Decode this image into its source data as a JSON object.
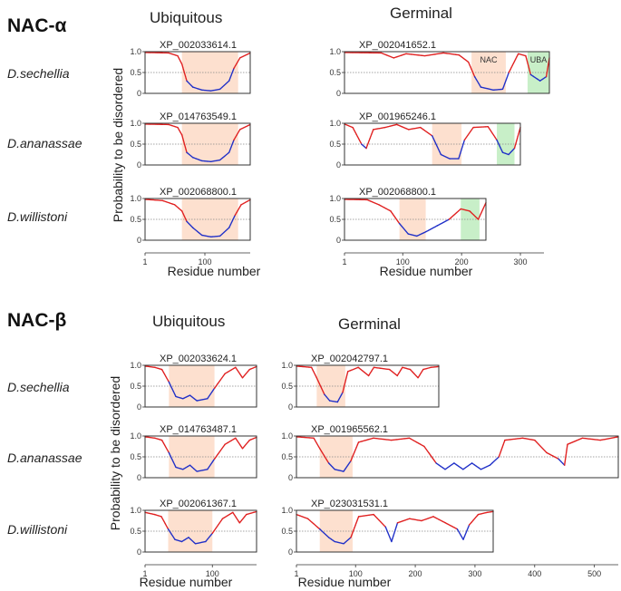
{
  "sections": [
    {
      "id": "alpha",
      "title": "NAC-α",
      "groups": [
        "Ubiquitous",
        "Germinal"
      ]
    },
    {
      "id": "beta",
      "title": "NAC-β",
      "groups": [
        "Ubiquitous",
        "Germinal"
      ]
    }
  ],
  "species": [
    "D.sechellia",
    "D.ananassae",
    "D.willistoni"
  ],
  "ylabel": "Probability to be disordered",
  "xlabel": "Residue number",
  "domain_labels": {
    "nac": "NAC",
    "uba": "UBA"
  },
  "colors": {
    "disordered": "#e02020",
    "ordered": "#2030c8",
    "nac_domain": "#fde0cf",
    "uba_domain": "#c8efc8"
  },
  "chart_data": [
    {
      "type": "line",
      "title": "XP_002033614.1",
      "section": "NAC-α",
      "group": "Ubiquitous",
      "species": "D.sechellia",
      "length": 175,
      "ylim": [
        0,
        1
      ],
      "yticks": [
        0,
        0.5,
        1.0
      ],
      "xticks": [],
      "nac_domain": [
        62,
        155
      ],
      "profile": [
        [
          1,
          0.98
        ],
        [
          40,
          0.97
        ],
        [
          55,
          0.9
        ],
        [
          62,
          0.7
        ],
        [
          70,
          0.3
        ],
        [
          80,
          0.15
        ],
        [
          95,
          0.08
        ],
        [
          110,
          0.06
        ],
        [
          125,
          0.1
        ],
        [
          140,
          0.3
        ],
        [
          148,
          0.6
        ],
        [
          158,
          0.85
        ],
        [
          175,
          0.97
        ]
      ]
    },
    {
      "type": "line",
      "title": "XP_014763549.1",
      "section": "NAC-α",
      "group": "Ubiquitous",
      "species": "D.ananassae",
      "length": 175,
      "ylim": [
        0,
        1
      ],
      "yticks": [
        0,
        0.5,
        1.0
      ],
      "xticks": [],
      "nac_domain": [
        62,
        155
      ],
      "profile": [
        [
          1,
          0.98
        ],
        [
          40,
          0.97
        ],
        [
          55,
          0.9
        ],
        [
          62,
          0.72
        ],
        [
          70,
          0.3
        ],
        [
          80,
          0.18
        ],
        [
          95,
          0.1
        ],
        [
          110,
          0.08
        ],
        [
          125,
          0.12
        ],
        [
          140,
          0.3
        ],
        [
          148,
          0.6
        ],
        [
          158,
          0.85
        ],
        [
          175,
          0.97
        ]
      ]
    },
    {
      "type": "line",
      "title": "XP_002068800.1",
      "section": "NAC-α",
      "group": "Ubiquitous",
      "species": "D.willistoni",
      "length": 175,
      "ylim": [
        0,
        1
      ],
      "yticks": [
        0,
        0.5,
        1.0
      ],
      "xticks": [
        1,
        100
      ],
      "nac_domain": [
        62,
        155
      ],
      "profile": [
        [
          1,
          0.98
        ],
        [
          30,
          0.95
        ],
        [
          50,
          0.85
        ],
        [
          62,
          0.7
        ],
        [
          70,
          0.45
        ],
        [
          80,
          0.3
        ],
        [
          95,
          0.12
        ],
        [
          110,
          0.08
        ],
        [
          125,
          0.1
        ],
        [
          140,
          0.3
        ],
        [
          150,
          0.6
        ],
        [
          160,
          0.85
        ],
        [
          175,
          0.97
        ]
      ]
    },
    {
      "type": "line",
      "title": "XP_002041652.1",
      "section": "NAC-α",
      "group": "Germinal",
      "species": "D.sechellia",
      "length": 330,
      "ylim": [
        0,
        1
      ],
      "yticks": [
        0,
        0.5,
        1.0
      ],
      "xticks": [],
      "nac_domain": [
        205,
        260
      ],
      "uba_domain": [
        295,
        330
      ],
      "profile": [
        [
          1,
          0.98
        ],
        [
          60,
          0.97
        ],
        [
          80,
          0.85
        ],
        [
          100,
          0.95
        ],
        [
          130,
          0.9
        ],
        [
          160,
          0.97
        ],
        [
          185,
          0.92
        ],
        [
          200,
          0.75
        ],
        [
          210,
          0.4
        ],
        [
          220,
          0.15
        ],
        [
          240,
          0.08
        ],
        [
          255,
          0.1
        ],
        [
          265,
          0.5
        ],
        [
          280,
          0.95
        ],
        [
          292,
          0.9
        ],
        [
          300,
          0.45
        ],
        [
          315,
          0.3
        ],
        [
          325,
          0.4
        ],
        [
          330,
          0.85
        ]
      ]
    },
    {
      "type": "line",
      "title": "XP_001965246.1",
      "section": "NAC-α",
      "group": "Germinal",
      "species": "D.ananassae",
      "length": 300,
      "ylim": [
        0,
        1
      ],
      "yticks": [
        0,
        0.5,
        1.0
      ],
      "xticks": [],
      "nac_domain": [
        150,
        200
      ],
      "uba_domain": [
        260,
        290
      ],
      "profile": [
        [
          1,
          0.98
        ],
        [
          15,
          0.9
        ],
        [
          30,
          0.5
        ],
        [
          38,
          0.4
        ],
        [
          50,
          0.85
        ],
        [
          70,
          0.9
        ],
        [
          90,
          0.97
        ],
        [
          110,
          0.85
        ],
        [
          130,
          0.9
        ],
        [
          150,
          0.7
        ],
        [
          165,
          0.25
        ],
        [
          180,
          0.15
        ],
        [
          195,
          0.15
        ],
        [
          205,
          0.6
        ],
        [
          220,
          0.9
        ],
        [
          245,
          0.92
        ],
        [
          260,
          0.6
        ],
        [
          270,
          0.3
        ],
        [
          280,
          0.25
        ],
        [
          290,
          0.4
        ],
        [
          300,
          0.9
        ]
      ]
    },
    {
      "type": "line",
      "title": "XP_002068800.1",
      "section": "NAC-α",
      "group": "Germinal",
      "species": "D.willistoni",
      "length": 243,
      "ylim": [
        0,
        1
      ],
      "yticks": [
        0,
        0.5,
        1.0
      ],
      "xticks": [
        1,
        100,
        200,
        300
      ],
      "xaxis_max": 340,
      "nac_domain": [
        95,
        140
      ],
      "uba_domain": [
        200,
        232
      ],
      "profile": [
        [
          1,
          0.98
        ],
        [
          40,
          0.97
        ],
        [
          60,
          0.85
        ],
        [
          80,
          0.7
        ],
        [
          95,
          0.4
        ],
        [
          110,
          0.15
        ],
        [
          125,
          0.1
        ],
        [
          140,
          0.2
        ],
        [
          160,
          0.35
        ],
        [
          180,
          0.5
        ],
        [
          200,
          0.75
        ],
        [
          215,
          0.7
        ],
        [
          230,
          0.5
        ],
        [
          243,
          0.9
        ]
      ]
    },
    {
      "type": "line",
      "title": "XP_002033624.1",
      "section": "NAC-β",
      "group": "Ubiquitous",
      "species": "D.sechellia",
      "length": 160,
      "ylim": [
        0,
        1
      ],
      "yticks": [
        0,
        0.5,
        1.0
      ],
      "xticks": [],
      "nac_domain": [
        35,
        100
      ],
      "profile": [
        [
          1,
          0.98
        ],
        [
          15,
          0.95
        ],
        [
          25,
          0.9
        ],
        [
          35,
          0.6
        ],
        [
          45,
          0.25
        ],
        [
          55,
          0.2
        ],
        [
          65,
          0.28
        ],
        [
          75,
          0.15
        ],
        [
          90,
          0.2
        ],
        [
          100,
          0.45
        ],
        [
          115,
          0.8
        ],
        [
          130,
          0.95
        ],
        [
          140,
          0.7
        ],
        [
          150,
          0.9
        ],
        [
          160,
          0.97
        ]
      ]
    },
    {
      "type": "line",
      "title": "XP_014763487.1",
      "section": "NAC-β",
      "group": "Ubiquitous",
      "species": "D.ananassae",
      "length": 160,
      "ylim": [
        0,
        1
      ],
      "yticks": [
        0,
        0.5,
        1.0
      ],
      "xticks": [],
      "nac_domain": [
        35,
        100
      ],
      "profile": [
        [
          1,
          0.98
        ],
        [
          15,
          0.95
        ],
        [
          25,
          0.9
        ],
        [
          35,
          0.6
        ],
        [
          45,
          0.25
        ],
        [
          55,
          0.2
        ],
        [
          65,
          0.3
        ],
        [
          75,
          0.15
        ],
        [
          90,
          0.2
        ],
        [
          100,
          0.45
        ],
        [
          115,
          0.8
        ],
        [
          130,
          0.95
        ],
        [
          140,
          0.7
        ],
        [
          150,
          0.9
        ],
        [
          160,
          0.97
        ]
      ]
    },
    {
      "type": "line",
      "title": "XP_002061367.1",
      "section": "NAC-β",
      "group": "Ubiquitous",
      "species": "D.willistoni",
      "length": 165,
      "ylim": [
        0,
        1
      ],
      "yticks": [
        0,
        0.5,
        1.0
      ],
      "xticks": [
        1,
        100
      ],
      "nac_domain": [
        35,
        100
      ],
      "profile": [
        [
          1,
          0.95
        ],
        [
          15,
          0.9
        ],
        [
          25,
          0.85
        ],
        [
          35,
          0.55
        ],
        [
          45,
          0.3
        ],
        [
          55,
          0.25
        ],
        [
          65,
          0.35
        ],
        [
          75,
          0.2
        ],
        [
          90,
          0.25
        ],
        [
          100,
          0.45
        ],
        [
          115,
          0.8
        ],
        [
          130,
          0.95
        ],
        [
          140,
          0.7
        ],
        [
          150,
          0.9
        ],
        [
          165,
          0.97
        ]
      ]
    },
    {
      "type": "line",
      "title": "XP_002042797.1",
      "section": "NAC-β",
      "group": "Germinal",
      "species": "D.sechellia",
      "length": 275,
      "ylim": [
        0,
        1
      ],
      "yticks": [
        0,
        0.5,
        1.0
      ],
      "xticks": [],
      "xaxis_max": 540,
      "nac_domain": [
        40,
        95
      ],
      "profile": [
        [
          1,
          0.98
        ],
        [
          30,
          0.95
        ],
        [
          40,
          0.7
        ],
        [
          55,
          0.3
        ],
        [
          65,
          0.15
        ],
        [
          80,
          0.12
        ],
        [
          90,
          0.35
        ],
        [
          100,
          0.85
        ],
        [
          120,
          0.95
        ],
        [
          140,
          0.75
        ],
        [
          150,
          0.95
        ],
        [
          180,
          0.9
        ],
        [
          195,
          0.75
        ],
        [
          205,
          0.95
        ],
        [
          220,
          0.9
        ],
        [
          235,
          0.7
        ],
        [
          245,
          0.9
        ],
        [
          260,
          0.95
        ],
        [
          275,
          0.97
        ]
      ]
    },
    {
      "type": "line",
      "title": "XP_001965562.1",
      "section": "NAC-β",
      "group": "Germinal",
      "species": "D.ananassae",
      "length": 540,
      "ylim": [
        0,
        1
      ],
      "yticks": [
        0,
        0.5,
        1.0
      ],
      "xticks": [],
      "xaxis_max": 540,
      "nac_domain": [
        40,
        95
      ],
      "profile": [
        [
          1,
          0.98
        ],
        [
          30,
          0.95
        ],
        [
          40,
          0.7
        ],
        [
          55,
          0.35
        ],
        [
          65,
          0.2
        ],
        [
          80,
          0.15
        ],
        [
          92,
          0.4
        ],
        [
          105,
          0.85
        ],
        [
          130,
          0.95
        ],
        [
          160,
          0.9
        ],
        [
          190,
          0.95
        ],
        [
          215,
          0.75
        ],
        [
          235,
          0.35
        ],
        [
          250,
          0.2
        ],
        [
          265,
          0.35
        ],
        [
          280,
          0.2
        ],
        [
          295,
          0.35
        ],
        [
          310,
          0.2
        ],
        [
          325,
          0.3
        ],
        [
          340,
          0.5
        ],
        [
          350,
          0.9
        ],
        [
          380,
          0.95
        ],
        [
          400,
          0.9
        ],
        [
          420,
          0.6
        ],
        [
          440,
          0.45
        ],
        [
          450,
          0.3
        ],
        [
          455,
          0.8
        ],
        [
          480,
          0.95
        ],
        [
          510,
          0.9
        ],
        [
          540,
          0.98
        ]
      ]
    },
    {
      "type": "line",
      "title": "XP_023031531.1",
      "section": "NAC-β",
      "group": "Germinal",
      "species": "D.willistoni",
      "length": 330,
      "ylim": [
        0,
        1
      ],
      "yticks": [
        0,
        0.5,
        1.0
      ],
      "xticks": [
        1,
        100,
        200,
        300,
        400,
        500
      ],
      "xaxis_max": 540,
      "nac_domain": [
        40,
        95
      ],
      "profile": [
        [
          1,
          0.9
        ],
        [
          20,
          0.8
        ],
        [
          40,
          0.55
        ],
        [
          55,
          0.35
        ],
        [
          65,
          0.25
        ],
        [
          80,
          0.2
        ],
        [
          92,
          0.35
        ],
        [
          105,
          0.85
        ],
        [
          130,
          0.9
        ],
        [
          150,
          0.6
        ],
        [
          160,
          0.25
        ],
        [
          170,
          0.7
        ],
        [
          190,
          0.8
        ],
        [
          210,
          0.75
        ],
        [
          230,
          0.85
        ],
        [
          250,
          0.7
        ],
        [
          270,
          0.55
        ],
        [
          280,
          0.3
        ],
        [
          290,
          0.65
        ],
        [
          305,
          0.9
        ],
        [
          320,
          0.95
        ],
        [
          330,
          0.97
        ]
      ]
    }
  ]
}
